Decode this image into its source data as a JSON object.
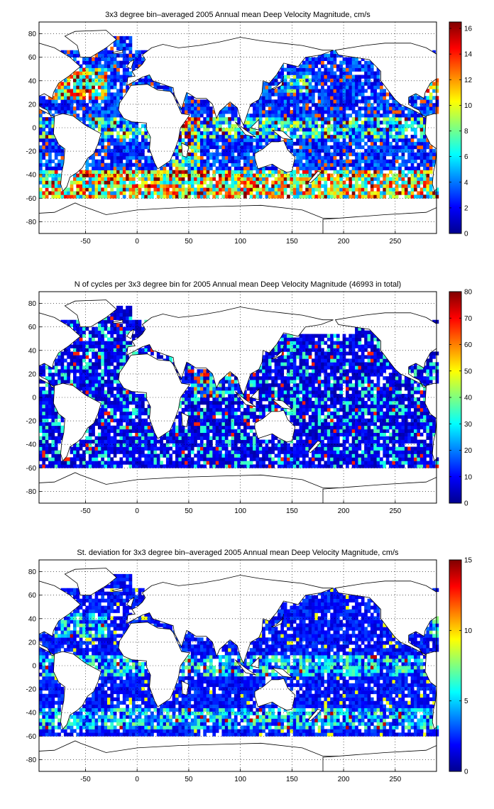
{
  "maps": [
    {
      "title": "3x3 degree bin–averaged 2005 Annual mean Deep Velocity Magnitude, cm/s",
      "xticks": [
        "-50",
        "0",
        "50",
        "100",
        "150",
        "200",
        "250"
      ],
      "yticks": [
        "80",
        "60",
        "40",
        "20",
        "0",
        "-20",
        "-40",
        "-60",
        "-80"
      ],
      "colorbar_ticks": [
        "16",
        "14",
        "12",
        "10",
        "8",
        "6",
        "4",
        "2",
        "0"
      ],
      "colorbar_range": [
        0,
        16.5
      ],
      "colormap": "jet",
      "field": "velocity"
    },
    {
      "title": "N of cycles per 3x3 degree bin for 2005 Annual mean Deep Velocity Magnitude (46993 in total)",
      "xticks": [
        "-50",
        "0",
        "50",
        "100",
        "150",
        "200",
        "250"
      ],
      "yticks": [
        "80",
        "60",
        "40",
        "20",
        "0",
        "-20",
        "-40",
        "-60",
        "-80"
      ],
      "colorbar_ticks": [
        "80",
        "70",
        "60",
        "50",
        "40",
        "30",
        "20",
        "10",
        "0"
      ],
      "colorbar_range": [
        0,
        80
      ],
      "colormap": "jet",
      "field": "count"
    },
    {
      "title": "St. deviation for 3x3 degree bin–averaged 2005 Annual mean Deep Velocity Magnitude, cm/s",
      "xticks": [
        "-50",
        "0",
        "50",
        "100",
        "150",
        "200",
        "250"
      ],
      "yticks": [
        "80",
        "60",
        "40",
        "20",
        "0",
        "-20",
        "-40",
        "-60",
        "-80"
      ],
      "colorbar_ticks": [
        "15",
        "10",
        "5",
        "0"
      ],
      "colorbar_range": [
        0,
        15
      ],
      "colormap": "jet",
      "field": "stdev"
    }
  ],
  "chart_data": [
    {
      "type": "heatmap",
      "title": "3x3 degree bin–averaged 2005 Annual mean Deep Velocity Magnitude, cm/s",
      "x_range": [
        -95,
        290
      ],
      "y_range": [
        -90,
        90
      ],
      "x_ticks": [
        -50,
        0,
        50,
        100,
        150,
        200,
        250
      ],
      "y_ticks": [
        80,
        60,
        40,
        20,
        0,
        -20,
        -40,
        -60,
        -80
      ],
      "bin_size_deg": 3,
      "grid": true,
      "colorbar": [
        0,
        16.5
      ],
      "colormap": "jet",
      "legend": "right"
    },
    {
      "type": "heatmap",
      "title": "N of cycles per 3x3 degree bin for 2005 Annual mean Deep Velocity Magnitude (46993 in total)",
      "x_range": [
        -95,
        290
      ],
      "y_range": [
        -90,
        90
      ],
      "x_ticks": [
        -50,
        0,
        50,
        100,
        150,
        200,
        250
      ],
      "y_ticks": [
        80,
        60,
        40,
        20,
        0,
        -20,
        -40,
        -60,
        -80
      ],
      "bin_size_deg": 3,
      "total_cycles": 46993,
      "grid": true,
      "colorbar": [
        0,
        80
      ],
      "colormap": "jet",
      "legend": "right"
    },
    {
      "type": "heatmap",
      "title": "St. deviation for 3x3 degree bin–averaged 2005 Annual mean Deep Velocity Magnitude, cm/s",
      "x_range": [
        -95,
        290
      ],
      "y_range": [
        -90,
        90
      ],
      "x_ticks": [
        -50,
        0,
        50,
        100,
        150,
        200,
        250
      ],
      "y_ticks": [
        80,
        60,
        40,
        20,
        0,
        -20,
        -40,
        -60,
        -80
      ],
      "bin_size_deg": 3,
      "grid": true,
      "colorbar": [
        0,
        15
      ],
      "colormap": "jet",
      "legend": "right"
    }
  ]
}
